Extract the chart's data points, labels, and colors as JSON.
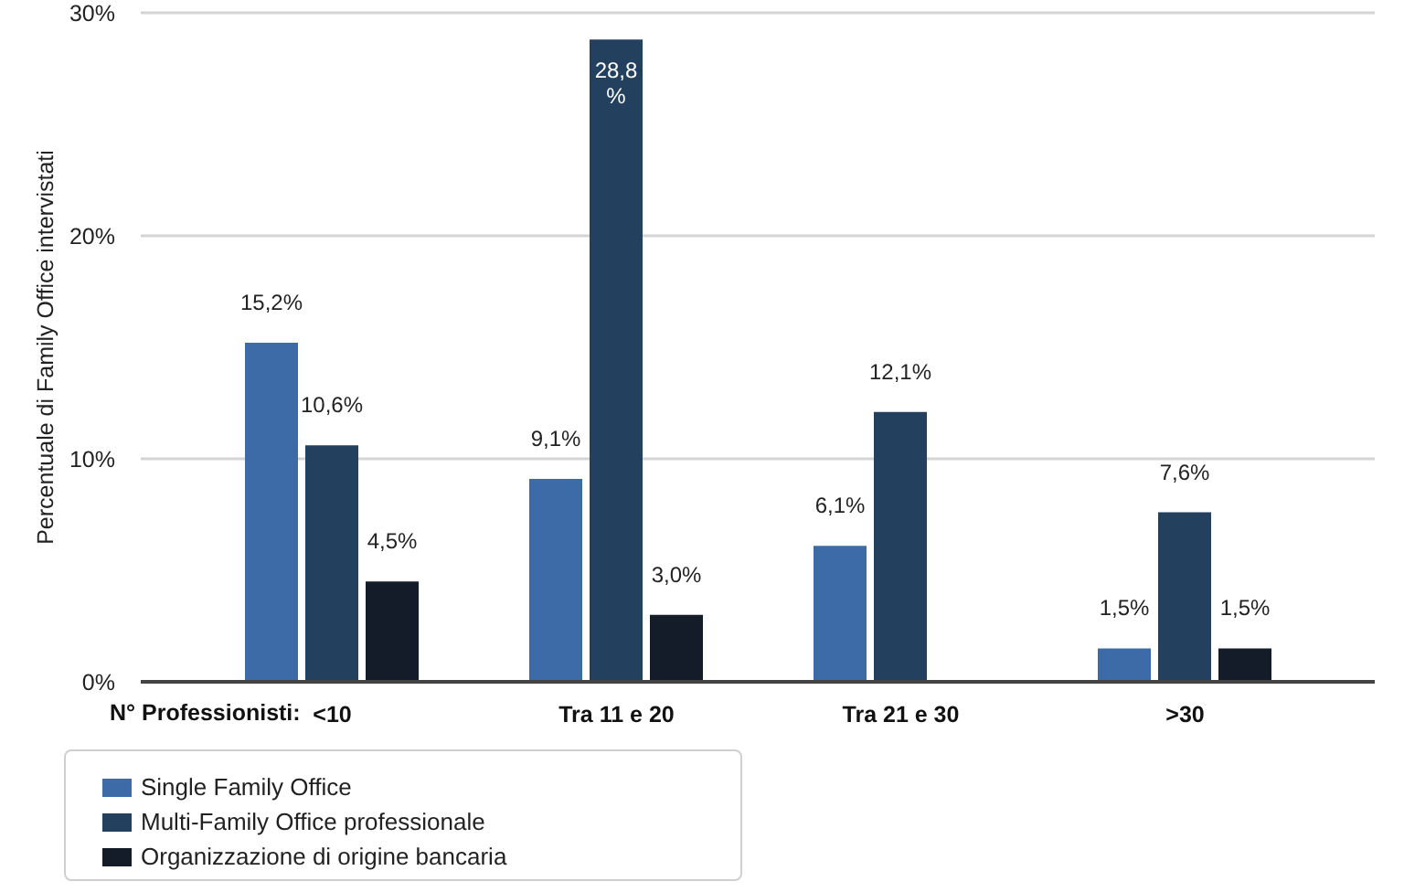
{
  "chart_data": {
    "type": "bar",
    "ylabel": "Percentuale di Family Office intervistati",
    "xlabel": "N° Professionisti:",
    "categories": [
      "<10",
      "Tra 11 e 20",
      "Tra 21 e 30",
      ">30"
    ],
    "series": [
      {
        "name": "Single Family Office",
        "color": "#3c6ba8",
        "values": [
          15.2,
          9.1,
          6.1,
          1.5
        ],
        "value_labels": [
          "15,2%",
          "9,1%",
          "6,1%",
          "1,5%"
        ]
      },
      {
        "name": "Multi-Family Office professionale",
        "color": "#24405f",
        "values": [
          10.6,
          28.8,
          12.1,
          7.6
        ],
        "value_labels": [
          "10,6%",
          "28,8%",
          "12,1%",
          "7,6%"
        ]
      },
      {
        "name": "Organizzazione di origine bancaria",
        "color": "#131c28",
        "values": [
          4.5,
          3.0,
          null,
          1.5
        ],
        "value_labels": [
          "4,5%",
          "3,0%",
          null,
          "1,5%"
        ]
      }
    ],
    "ylim": [
      0,
      30
    ],
    "yticks": [
      {
        "value": 0,
        "label": "0%"
      },
      {
        "value": 10,
        "label": "10%"
      },
      {
        "value": 20,
        "label": "20%"
      },
      {
        "value": 30,
        "label": "30%"
      }
    ],
    "grid": "y",
    "legend": "bottom left"
  }
}
